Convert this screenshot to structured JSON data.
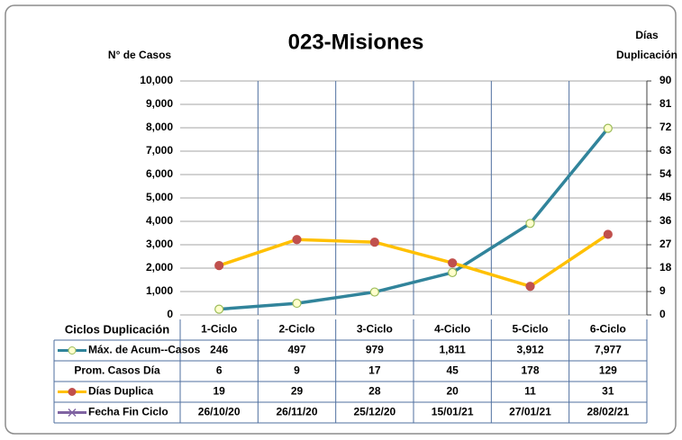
{
  "chart_data": {
    "type": "line",
    "title": "023-Misiones",
    "ylabel": "N° de Casos",
    "y2label": [
      "Días",
      "Duplicación"
    ],
    "table_header": "Ciclos Duplicación",
    "categories": [
      "1-Ciclo",
      "2-Ciclo",
      "3-Ciclo",
      "4-Ciclo",
      "5-Ciclo",
      "6-Ciclo"
    ],
    "series": [
      {
        "name": "Máx. de Acum--Casos",
        "color": "#31849b",
        "marker_color": "#ffffcc",
        "marker_edge": "#9bbb59",
        "axis": "y",
        "values": [
          246,
          497,
          979,
          1811,
          3912,
          7977
        ],
        "value_labels": [
          "246",
          "497",
          "979",
          "1,811",
          "3,912",
          "7,977"
        ]
      },
      {
        "name": "Prom. Casos Día",
        "values": [
          6,
          9,
          17,
          45,
          178,
          129
        ]
      },
      {
        "name": "Días Duplica",
        "color": "#ffc000",
        "marker_color": "#c0504d",
        "marker_edge": "#c0504d",
        "axis": "y2",
        "values": [
          19,
          29,
          28,
          20,
          11,
          31
        ]
      },
      {
        "name": "Fecha Fin Ciclo",
        "color": "#8064a2",
        "labels": [
          "26/10/20",
          "26/11/20",
          "25/12/20",
          "15/01/21",
          "27/01/21",
          "28/02/21"
        ]
      }
    ],
    "ylim": [
      0,
      10000
    ],
    "yticks": [
      0,
      {
        "value": 1000,
        "label": "1,000"
      },
      {
        "value": 2000,
        "label": "2,000"
      },
      {
        "value": 3000,
        "label": "3,000"
      },
      {
        "value": 4000,
        "label": "4,000"
      },
      {
        "value": 5000,
        "label": "5,000"
      },
      {
        "value": 6000,
        "label": "6,000"
      },
      {
        "value": 7000,
        "label": "7,000"
      },
      {
        "value": 8000,
        "label": "8,000"
      },
      {
        "value": 9000,
        "label": "9,000"
      },
      {
        "value": 10000,
        "label": "10,000"
      }
    ],
    "y2lim": [
      0,
      90
    ],
    "y2ticks": [
      0,
      9,
      18,
      27,
      36,
      45,
      54,
      63,
      72,
      81,
      90
    ],
    "grid": true
  }
}
